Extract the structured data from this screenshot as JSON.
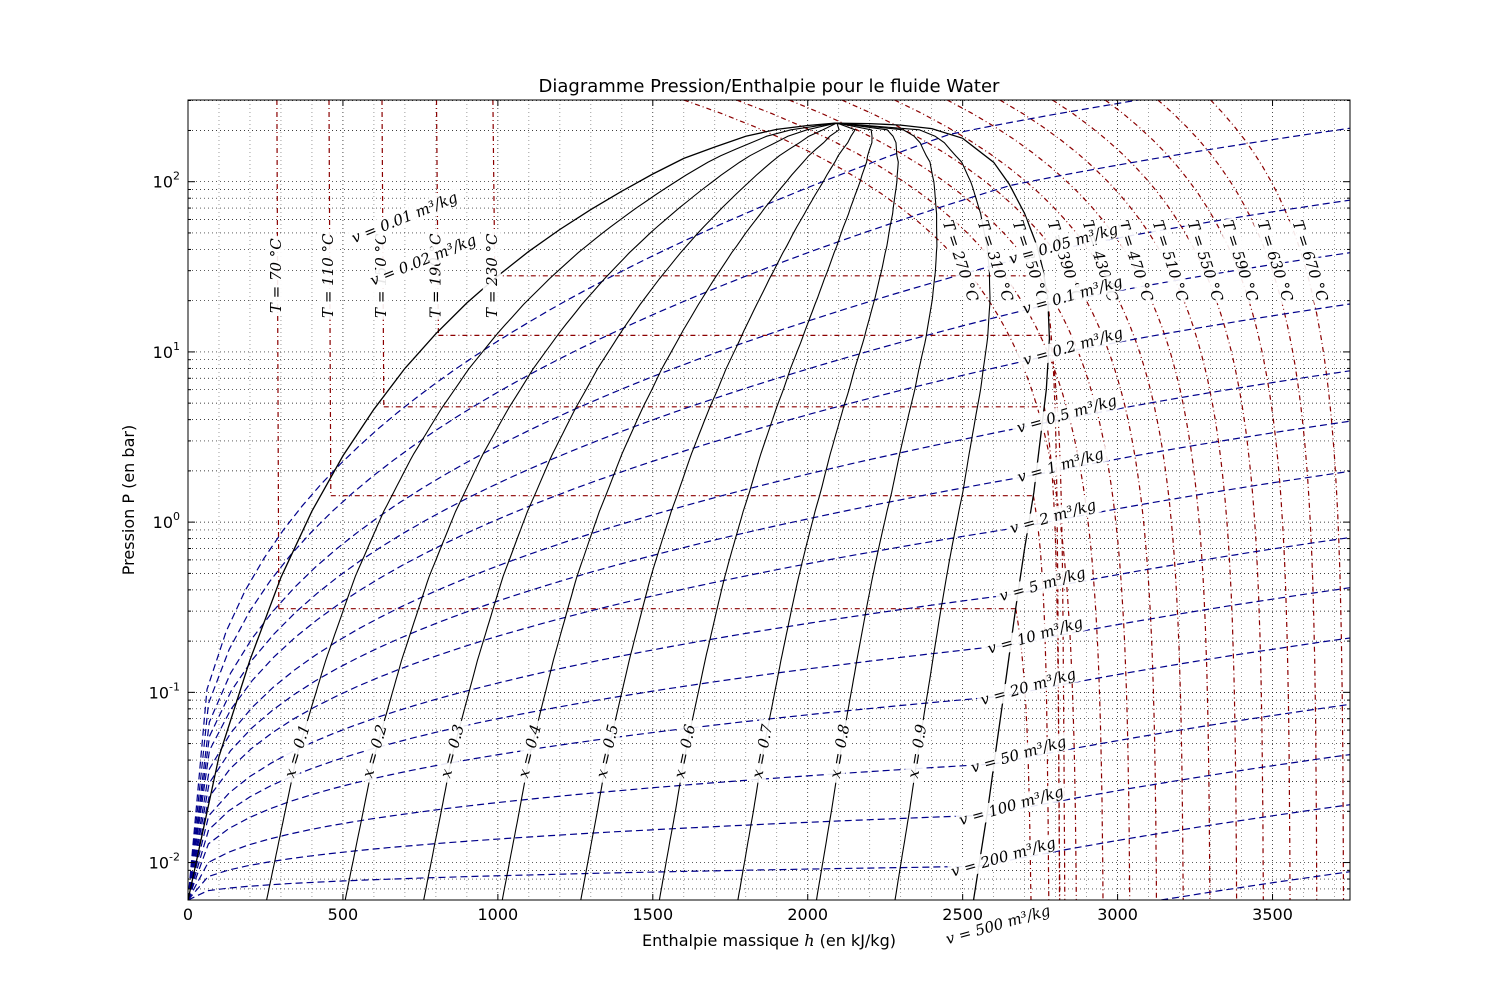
{
  "chart_data": {
    "type": "line",
    "title": "Diagramme Pression/Enthalpie pour le fluide Water",
    "xlabel_prefix": "Enthalpie massique ",
    "xlabel_var": "h",
    "xlabel_suffix": " (en kJ/kg)",
    "ylabel": "Pression P (en bar)",
    "xlim": [
      0,
      3750
    ],
    "ylim_log10": [
      -2.22,
      2.48
    ],
    "yscale": "log",
    "grid": true,
    "x_ticks": [
      {
        "value": 0,
        "label": "0"
      },
      {
        "value": 500,
        "label": "500"
      },
      {
        "value": 1000,
        "label": "1000"
      },
      {
        "value": 1500,
        "label": "1500"
      },
      {
        "value": 2000,
        "label": "2000"
      },
      {
        "value": 2500,
        "label": "2500"
      },
      {
        "value": 3000,
        "label": "3000"
      },
      {
        "value": 3500,
        "label": "3500"
      }
    ],
    "y_ticks": [
      {
        "exp": -2,
        "base": "10",
        "sup": "-2"
      },
      {
        "exp": -1,
        "base": "10",
        "sup": "-1"
      },
      {
        "exp": 0,
        "base": "10",
        "sup": "0"
      },
      {
        "exp": 1,
        "base": "10",
        "sup": "1"
      },
      {
        "exp": 2,
        "base": "10",
        "sup": "2"
      }
    ],
    "critical_point": {
      "h": 2087,
      "P": 220.6
    },
    "saturation_liquid": [
      [
        0,
        0.006
      ],
      [
        100,
        0.042
      ],
      [
        200,
        0.155
      ],
      [
        300,
        0.474
      ],
      [
        400,
        1.16
      ],
      [
        500,
        2.45
      ],
      [
        600,
        4.6
      ],
      [
        700,
        8.0
      ],
      [
        800,
        12.8
      ],
      [
        900,
        19.4
      ],
      [
        1000,
        28.0
      ],
      [
        1100,
        39.0
      ],
      [
        1200,
        52.4
      ],
      [
        1300,
        68.6
      ],
      [
        1400,
        88.0
      ],
      [
        1500,
        111
      ],
      [
        1600,
        137
      ],
      [
        1700,
        160
      ],
      [
        1800,
        185
      ],
      [
        1900,
        203
      ],
      [
        2000,
        214
      ],
      [
        2087,
        220.6
      ]
    ],
    "saturation_vapor": [
      [
        2087,
        220.6
      ],
      [
        2200,
        219.5
      ],
      [
        2300,
        215
      ],
      [
        2400,
        205
      ],
      [
        2500,
        180
      ],
      [
        2600,
        130
      ],
      [
        2650,
        97
      ],
      [
        2700,
        65
      ],
      [
        2740,
        42
      ],
      [
        2760,
        30
      ],
      [
        2775,
        20
      ],
      [
        2780,
        12
      ],
      [
        2770,
        6
      ],
      [
        2750,
        3
      ],
      [
        2730,
        1.5
      ],
      [
        2700,
        0.7
      ],
      [
        2670,
        0.3
      ],
      [
        2640,
        0.12
      ],
      [
        2610,
        0.05
      ],
      [
        2580,
        0.02
      ],
      [
        2550,
        0.009
      ],
      [
        2535,
        0.006
      ]
    ],
    "quality_lines": [
      {
        "x": 0.1,
        "label": "x = 0.1"
      },
      {
        "x": 0.2,
        "label": "x = 0.2"
      },
      {
        "x": 0.3,
        "label": "x = 0.3"
      },
      {
        "x": 0.4,
        "label": "x = 0.4"
      },
      {
        "x": 0.5,
        "label": "x = 0.5"
      },
      {
        "x": 0.6,
        "label": "x = 0.6"
      },
      {
        "x": 0.7,
        "label": "x = 0.7"
      },
      {
        "x": 0.8,
        "label": "x = 0.8"
      },
      {
        "x": 0.9,
        "label": "x = 0.9"
      }
    ],
    "isotherms": [
      {
        "T": 70,
        "label": "T = 70 °C",
        "h_liq": 293,
        "Psat": 0.31
      },
      {
        "T": 110,
        "label": "T = 110 °C",
        "h_liq": 461,
        "Psat": 1.43
      },
      {
        "T": 150,
        "label": "T = 150 °C",
        "h_liq": 632,
        "Psat": 4.76
      },
      {
        "T": 190,
        "label": "T = 190 °C",
        "h_liq": 808,
        "Psat": 12.5
      },
      {
        "T": 230,
        "label": "T = 230 °C",
        "h_liq": 990,
        "Psat": 28.0
      },
      {
        "T": 270,
        "label": "T = 270 °C"
      },
      {
        "T": 310,
        "label": "T = 310 °C"
      },
      {
        "T": 350,
        "label": "T = 350 °C"
      },
      {
        "T": 390,
        "label": "T = 390 °C"
      },
      {
        "T": 430,
        "label": "T = 430 °C"
      },
      {
        "T": 470,
        "label": "T = 470 °C"
      },
      {
        "T": 510,
        "label": "T = 510 °C"
      },
      {
        "T": 550,
        "label": "T = 550 °C"
      },
      {
        "T": 590,
        "label": "T = 590 °C"
      },
      {
        "T": 630,
        "label": "T = 630 °C"
      },
      {
        "T": 670,
        "label": "T = 670 °C"
      }
    ],
    "isochores": [
      {
        "v": 0.01,
        "label": "v = 0.01 m³/kg"
      },
      {
        "v": 0.02,
        "label": "v = 0.02 m³/kg"
      },
      {
        "v": 0.05,
        "label": "v = 0.05 m³/kg"
      },
      {
        "v": 0.1,
        "label": "v = 0.1 m³/kg"
      },
      {
        "v": 0.2,
        "label": "v = 0.2 m³/kg"
      },
      {
        "v": 0.5,
        "label": "v = 0.5 m³/kg"
      },
      {
        "v": 1,
        "label": "v = 1 m³/kg"
      },
      {
        "v": 2,
        "label": "v = 2 m³/kg"
      },
      {
        "v": 5,
        "label": "v = 5 m³/kg"
      },
      {
        "v": 10,
        "label": "v = 10 m³/kg"
      },
      {
        "v": 20,
        "label": "v = 20 m³/kg"
      },
      {
        "v": 50,
        "label": "v = 50 m³/kg"
      },
      {
        "v": 100,
        "label": "v = 100 m³/kg"
      },
      {
        "v": 200,
        "label": "v = 200 m³/kg"
      },
      {
        "v": 500,
        "label": "v = 500 m³/kg"
      }
    ],
    "colors": {
      "saturation": "#000000",
      "quality": "#000000",
      "isotherm": "#8b0000",
      "isochore": "#00008b",
      "grid": "#000000"
    }
  }
}
